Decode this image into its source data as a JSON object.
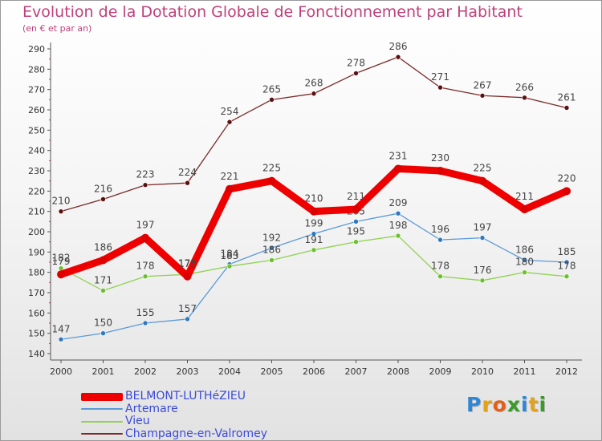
{
  "title": "Evolution de la Dotation Globale de Fonctionnement par Habitant",
  "subtitle": "(en € et par an)",
  "logo": {
    "text": "Proxiti",
    "letters": [
      {
        "ch": "P",
        "color": "#2e86d6"
      },
      {
        "ch": "r",
        "color": "#e3a21a"
      },
      {
        "ch": "o",
        "color": "#e0601a"
      },
      {
        "ch": "x",
        "color": "#3a9a2a"
      },
      {
        "ch": "i",
        "color": "#2e86d6"
      },
      {
        "ch": "t",
        "color": "#e3a21a"
      },
      {
        "ch": "i",
        "color": "#3a9a2a"
      }
    ]
  },
  "chart_data": {
    "type": "line",
    "x": [
      "2000",
      "2001",
      "2002",
      "2003",
      "2004",
      "2005",
      "2006",
      "2007",
      "2008",
      "2009",
      "2010",
      "2011",
      "2012"
    ],
    "ylim": [
      140,
      290
    ],
    "yticks": [
      140,
      150,
      160,
      170,
      180,
      190,
      200,
      210,
      220,
      230,
      240,
      250,
      260,
      270,
      280,
      290
    ],
    "grid": false,
    "legend_position": "bottom-left",
    "series": [
      {
        "name": "Champagne-en-Valromey",
        "color": "#7a2a2a",
        "marker_color": "#5a1010",
        "values": [
          210,
          216,
          223,
          224,
          254,
          265,
          268,
          278,
          286,
          271,
          267,
          266,
          261
        ]
      },
      {
        "name": "Artemare",
        "color": "#5a9ad6",
        "marker_color": "#2f78c0",
        "values": [
          147,
          150,
          155,
          157,
          184,
          192,
          199,
          205,
          209,
          196,
          197,
          186,
          185
        ]
      },
      {
        "name": "Vieu",
        "color": "#8ed24e",
        "marker_color": "#6cc030",
        "values": [
          182,
          171,
          178,
          179,
          183,
          186,
          191,
          195,
          198,
          178,
          176,
          180,
          178
        ]
      },
      {
        "name": "BELMONT-LUTHéZIEU",
        "color": "#ee0000",
        "marker_color": "#dd0000",
        "values": [
          179,
          186,
          197,
          178,
          221,
          225,
          210,
          211,
          231,
          230,
          225,
          211,
          220
        ]
      }
    ],
    "legend_order": [
      "BELMONT-LUTHéZIEU",
      "Artemare",
      "Vieu",
      "Champagne-en-Valromey"
    ]
  }
}
